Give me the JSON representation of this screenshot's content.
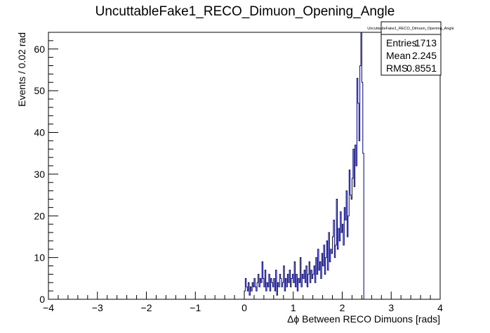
{
  "chart_data": {
    "type": "histogram",
    "title": "UncuttableFake1_RECO_Dimuon_Opening_Angle",
    "xlabel": "Δϕ Between RECO Dimuons [rads]",
    "ylabel": "Events / 0.02 rad",
    "xlim": [
      -4,
      4
    ],
    "ylim": [
      0,
      64
    ],
    "x_ticks": [
      -4,
      -3,
      -2,
      -1,
      0,
      1,
      2,
      3,
      4
    ],
    "y_ticks": [
      0,
      10,
      20,
      30,
      40,
      50,
      60
    ],
    "bin_width": 0.02,
    "bins_start": 0.0,
    "line_color": "#000080",
    "counts": [
      2,
      5,
      3,
      2,
      4,
      1,
      3,
      2,
      4,
      3,
      5,
      3,
      2,
      4,
      6,
      3,
      5,
      4,
      9,
      5,
      3,
      7,
      2,
      4,
      3,
      6,
      2,
      5,
      4,
      3,
      5,
      2,
      7,
      1,
      4,
      3,
      6,
      5,
      3,
      4,
      8,
      2,
      5,
      3,
      6,
      4,
      7,
      3,
      5,
      6,
      4,
      9,
      3,
      6,
      2,
      5,
      4,
      10,
      3,
      6,
      5,
      7,
      4,
      8,
      3,
      6,
      9,
      4,
      7,
      5,
      6,
      8,
      4,
      10,
      6,
      12,
      7,
      9,
      5,
      11,
      8,
      13,
      6,
      10,
      14,
      7,
      16,
      9,
      12,
      11,
      15,
      19,
      10,
      13,
      24,
      12,
      17,
      14,
      21,
      16,
      18,
      13,
      22,
      19,
      26,
      15,
      20,
      31,
      25,
      24,
      29,
      36,
      27,
      37,
      32,
      53,
      47,
      38,
      56,
      64,
      52,
      35
    ]
  },
  "stats": {
    "title": "UncuttableFake1_RECO_Dimuon_Opening_Angle",
    "rows": [
      {
        "label": "Entries",
        "value": "1713"
      },
      {
        "label": "Mean",
        "value": "2.245"
      },
      {
        "label": "RMS",
        "value": "0.8551"
      }
    ]
  }
}
